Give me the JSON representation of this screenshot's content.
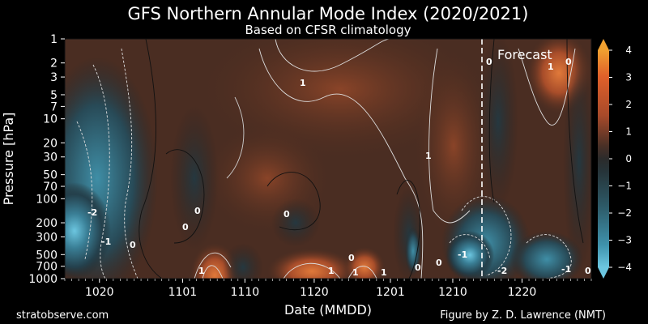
{
  "chart_data": {
    "type": "heatmap",
    "title": "GFS Northern Annular Mode Index (2020/2021)",
    "subtitle": "Based on CFSR climatology",
    "xlabel": "Date (MMDD)",
    "ylabel": "Pressure [hPa]",
    "x_ticks": [
      "1020",
      "1101",
      "1110",
      "1120",
      "1201",
      "1210",
      "1220"
    ],
    "y_ticks": [
      1,
      2,
      3,
      5,
      7,
      10,
      20,
      30,
      50,
      70,
      100,
      200,
      300,
      500,
      700,
      1000
    ],
    "y_scale": "log",
    "y_inverted": true,
    "colorbar": {
      "ticks": [
        4,
        3,
        2,
        1,
        0,
        -1,
        -2,
        -3,
        -4
      ],
      "range": [
        -4,
        4
      ],
      "negative_color": "#3b8fa6",
      "neutral_color": "#2b2b2b",
      "positive_color": "#c4552a",
      "extreme_positive": "#f0a030",
      "extreme_negative": "#6cc6e0"
    },
    "forecast_label": "Forecast",
    "forecast_start": "1214",
    "contour_labels": [
      "1",
      "0",
      "-2",
      "-1",
      "0",
      "0",
      "1",
      "0",
      "1",
      "0",
      "0",
      "-1",
      "-2",
      "-1",
      "0",
      "1",
      "1",
      "0",
      "1",
      "0",
      "1",
      "0"
    ],
    "credit_left": "stratobserve.com",
    "credit_right": "Figure by Z. D. Lawrence (NMT)"
  }
}
